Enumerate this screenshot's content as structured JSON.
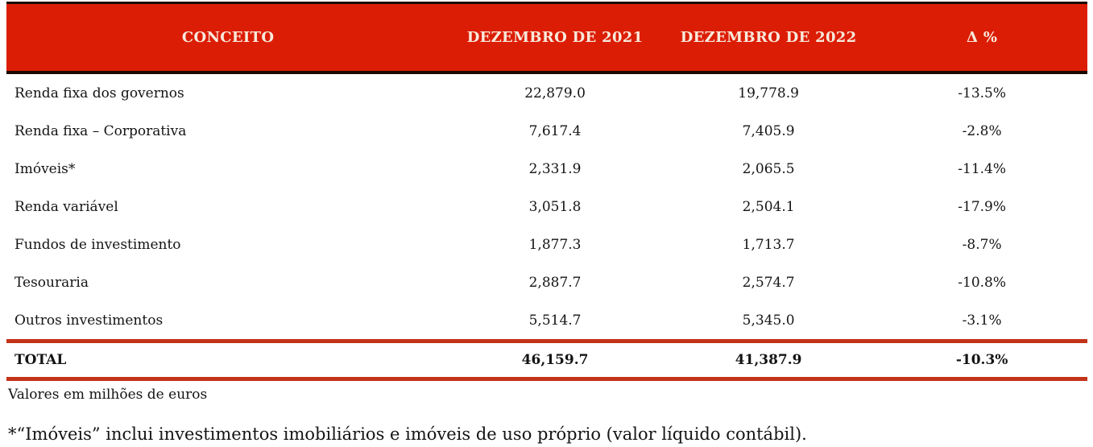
{
  "chart_data": {
    "type": "table",
    "title": "",
    "columns": [
      "CONCEITO",
      "DEZEMBRO DE 2021",
      "DEZEMBRO DE 2022",
      "Δ %"
    ],
    "rows": [
      [
        "Renda fixa dos governos",
        "22,879.0",
        "19,778.9",
        "-13.5%"
      ],
      [
        "Renda fixa – Corporativa",
        "7,617.4",
        "7,405.9",
        "-2.8%"
      ],
      [
        "Imóveis*",
        "2,331.9",
        "2,065.5",
        "-11.4%"
      ],
      [
        "Renda variável",
        "3,051.8",
        "2,504.1",
        "-17.9%"
      ],
      [
        "Fundos de investimento",
        "1,877.3",
        "1,713.7",
        "-8.7%"
      ],
      [
        "Tesouraria",
        "2,887.7",
        "2,574.7",
        "-10.8%"
      ],
      [
        "Outros investimentos",
        "5,514.7",
        "5,345.0",
        "-3.1%"
      ]
    ],
    "total_row": [
      "TOTAL",
      "46,159.7",
      "41,387.9",
      "-10.3%"
    ],
    "annotations": {
      "units_note": "Valores em milhões de euros",
      "footnote": "*“Imóveis” inclui investimentos imobiliários e imóveis de uso próprio (valor líquido contábil)."
    }
  },
  "colors": {
    "header_bg": "#DC1D05",
    "header_text": "#F7E9DC",
    "divider_red": "#C23318",
    "border_black": "#1B0A03",
    "body_text": "#141414"
  }
}
